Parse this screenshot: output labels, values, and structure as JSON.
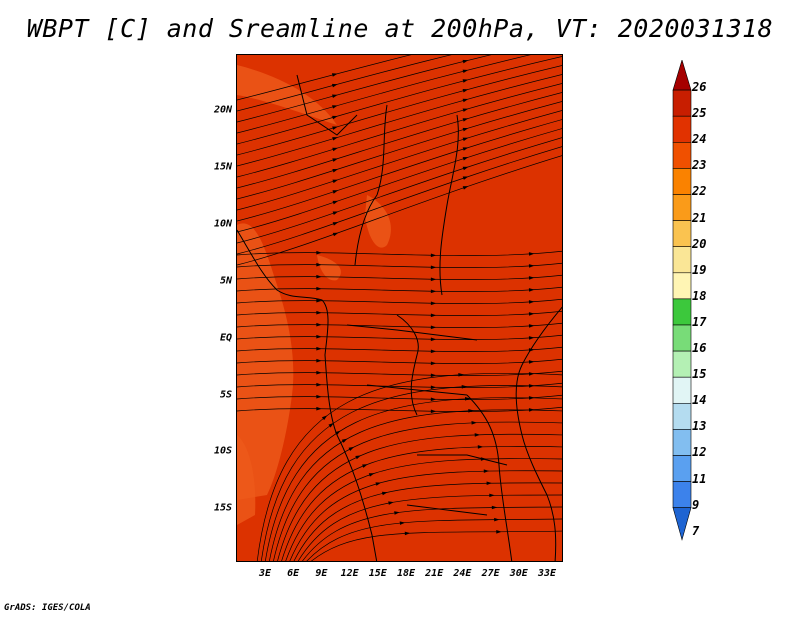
{
  "title": "WBPT [C] and Sreamline at 200hPa, VT: 2020031318",
  "footer": "GrADS: IGES/COLA",
  "axes": {
    "lat_labels": [
      "20N",
      "15N",
      "10N",
      "5N",
      "EQ",
      "5S",
      "10S",
      "15S"
    ],
    "lon_labels": [
      "3E",
      "6E",
      "9E",
      "12E",
      "15E",
      "18E",
      "21E",
      "24E",
      "27E",
      "30E",
      "33E"
    ]
  },
  "colorbar": {
    "levels": [
      "26",
      "25",
      "24",
      "23",
      "22",
      "21",
      "20",
      "19",
      "18",
      "17",
      "16",
      "15",
      "14",
      "13",
      "12",
      "11",
      "9",
      "7"
    ],
    "colors": [
      "#a50000",
      "#c81e00",
      "#e13200",
      "#f05000",
      "#fa8200",
      "#fa9b19",
      "#fac350",
      "#fae696",
      "#fff5b4",
      "#3cc83c",
      "#78dc78",
      "#b4f0b4",
      "#e1f5f5",
      "#b4dcf0",
      "#82bef0",
      "#5aa0f0",
      "#3c82eb",
      "#1e64d2"
    ]
  },
  "map": {
    "background_color": "#dc3200",
    "patch_color": "#ee5a1a",
    "line_color": "#000000"
  }
}
